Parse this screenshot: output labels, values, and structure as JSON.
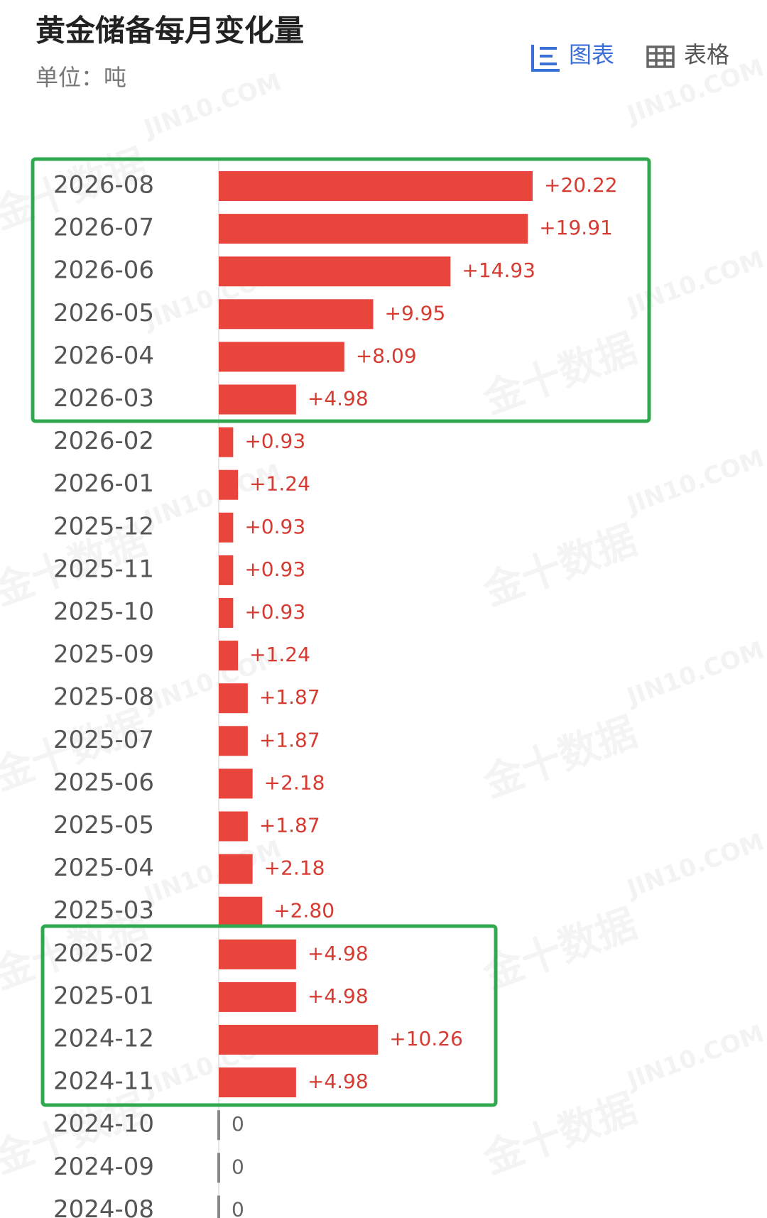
{
  "chart_data": {
    "type": "bar",
    "orientation": "horizontal",
    "title": "黄金储备每月变化量",
    "subtitle": "单位：吨",
    "tabs": [
      "图表",
      "表格"
    ],
    "watermarks": [
      "JIN10.COM",
      "金十数据"
    ],
    "categories": [
      "2026-08",
      "2026-07",
      "2026-06",
      "2026-05",
      "2026-04",
      "2026-03",
      "2026-02",
      "2026-01",
      "2025-12",
      "2025-11",
      "2025-10",
      "2025-09",
      "2025-08",
      "2025-07",
      "2025-06",
      "2025-05",
      "2025-04",
      "2025-03",
      "2025-02",
      "2025-01",
      "2024-12",
      "2024-11",
      "2024-10",
      "2024-09",
      "2024-08"
    ],
    "values": [
      20.22,
      19.91,
      14.93,
      9.95,
      8.09,
      4.98,
      0.93,
      1.24,
      0.93,
      0.93,
      0.93,
      1.24,
      1.87,
      1.87,
      2.18,
      1.87,
      2.18,
      2.8,
      4.98,
      4.98,
      10.26,
      4.98,
      0,
      0,
      0
    ],
    "value_labels": [
      "+20.22",
      "+19.91",
      "+14.93",
      "+9.95",
      "+8.09",
      "+4.98",
      "+0.93",
      "+1.24",
      "+0.93",
      "+0.93",
      "+0.93",
      "+1.24",
      "+1.87",
      "+1.87",
      "+2.18",
      "+1.87",
      "+2.18",
      "+2.80",
      "+4.98",
      "+4.98",
      "+10.26",
      "+4.98",
      "0",
      "0",
      "0"
    ],
    "color": "#e8453c"
  }
}
